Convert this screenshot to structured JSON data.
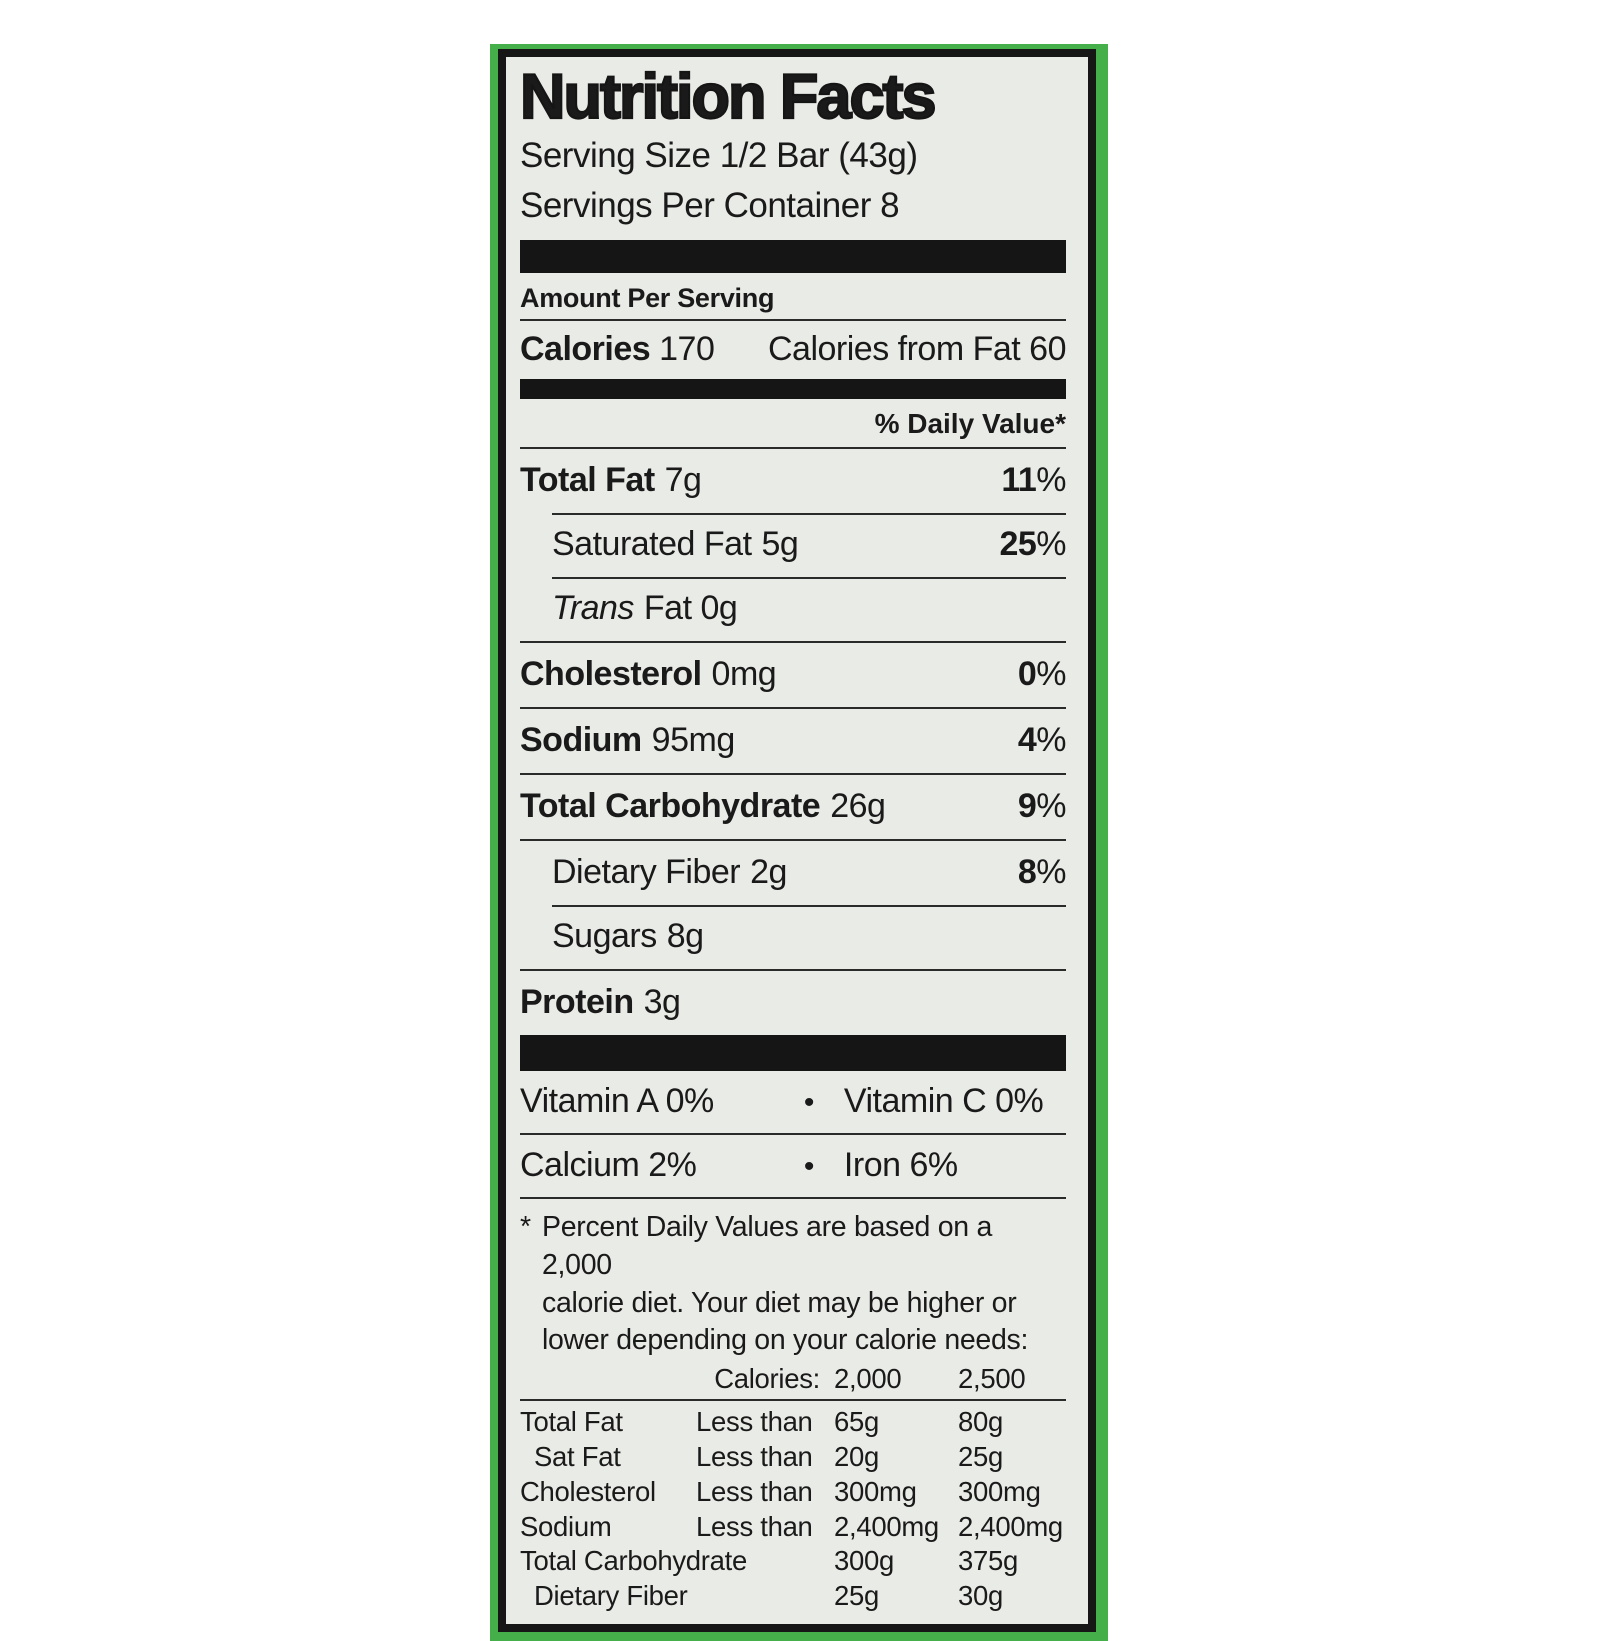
{
  "label": {
    "title": "Nutrition Facts",
    "serving_size": "Serving Size 1/2 Bar (43g)",
    "servings_per_container": "Servings Per Container 8",
    "amount_per_serving": "Amount Per Serving",
    "calories": {
      "label": "Calories",
      "value": "170",
      "from_fat": "Calories from Fat 60"
    },
    "daily_value_header": "% Daily Value*",
    "pct_sign": "%",
    "nutrients": [
      {
        "name": "Total Fat",
        "amount": "7g",
        "dv": "11"
      },
      {
        "name": "Saturated Fat",
        "amount": "5g",
        "dv": "25"
      },
      {
        "name_italic": "Trans",
        "name_rest": "Fat 0g"
      },
      {
        "name": "Cholesterol",
        "amount": "0mg",
        "dv": "0"
      },
      {
        "name": "Sodium",
        "amount": "95mg",
        "dv": "4"
      },
      {
        "name": "Total Carbohydrate",
        "amount": "26g",
        "dv": "9"
      },
      {
        "name": "Dietary Fiber",
        "amount": "2g",
        "dv": "8"
      },
      {
        "name": "Sugars",
        "amount": "8g"
      },
      {
        "name": "Protein",
        "amount": "3g"
      }
    ],
    "vitamins": [
      {
        "left": "Vitamin A 0%",
        "sep": "•",
        "right": "Vitamin C 0%"
      },
      {
        "left": "Calcium 2%",
        "sep": "•",
        "right": "Iron 6%"
      }
    ],
    "footnote": {
      "asterisk": "*",
      "lines": [
        "Percent Daily Values are based on a 2,000",
        "calorie diet. Your diet may be higher or",
        "lower depending on your calorie needs:"
      ]
    },
    "dv_table": {
      "header": {
        "c2": "Calories:",
        "c3": "2,000",
        "c4": "2,500"
      },
      "rows": [
        {
          "c1": "Total Fat",
          "c2": "Less than",
          "c3": "65g",
          "c4": "80g"
        },
        {
          "c1": "Sat Fat",
          "c2": "Less than",
          "c3": "20g",
          "c4": "25g"
        },
        {
          "c1": "Cholesterol",
          "c2": "Less than",
          "c3": "300mg",
          "c4": "300mg"
        },
        {
          "c1": "Sodium",
          "c2": "Less than",
          "c3": "2,400mg",
          "c4": "2,400mg"
        },
        {
          "c1": "Total Carbohydrate",
          "c3": "300g",
          "c4": "375g"
        },
        {
          "c1": "Dietary Fiber",
          "c3": "25g",
          "c4": "30g"
        }
      ]
    },
    "colors": {
      "green_border": "#45b049",
      "panel_background": "#e9ebe6",
      "ink": "#161616"
    }
  }
}
